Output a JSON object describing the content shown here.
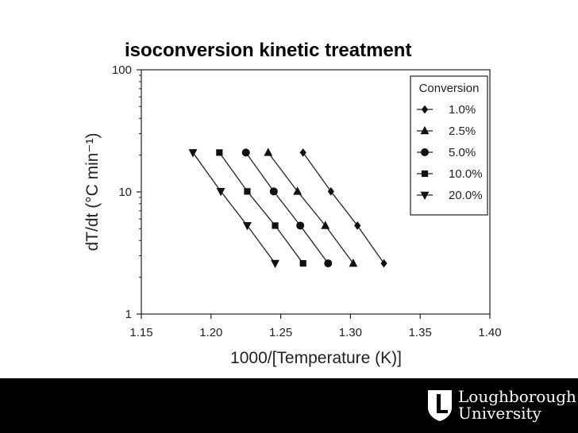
{
  "slide_title": "isoconversion kinetic treatment",
  "logo": {
    "line1": "Loughborough",
    "line2": "University"
  },
  "chart_data": {
    "type": "line",
    "xlabel": "1000/[Temperature (K)]",
    "ylabel": "dT/dt (°C min⁻¹)",
    "xlim": [
      1.15,
      1.4
    ],
    "ylim": [
      1,
      100
    ],
    "yscale": "log",
    "x_ticks": [
      "1.15",
      "1.20",
      "1.25",
      "1.30",
      "1.35",
      "1.40"
    ],
    "y_ticks": [
      "1",
      "10",
      "100"
    ],
    "grid": false,
    "legend_title": "Conversion",
    "legend_position": "top-right",
    "series": [
      {
        "name": "1.0%",
        "marker": "diamond",
        "x": [
          1.266,
          1.286,
          1.305,
          1.324
        ],
        "y": [
          21,
          10.1,
          5.3,
          2.6
        ]
      },
      {
        "name": "2.5%",
        "marker": "triangle-up",
        "x": [
          1.241,
          1.262,
          1.282,
          1.302
        ],
        "y": [
          21,
          10.1,
          5.3,
          2.6
        ]
      },
      {
        "name": "5.0%",
        "marker": "circle",
        "x": [
          1.225,
          1.245,
          1.264,
          1.284
        ],
        "y": [
          21,
          10.1,
          5.3,
          2.6
        ]
      },
      {
        "name": "10.0%",
        "marker": "square",
        "x": [
          1.206,
          1.226,
          1.246,
          1.266
        ],
        "y": [
          21,
          10.1,
          5.3,
          2.6
        ]
      },
      {
        "name": "20.0%",
        "marker": "triangle-down",
        "x": [
          1.187,
          1.207,
          1.226,
          1.246
        ],
        "y": [
          21,
          10.1,
          5.3,
          2.6
        ]
      }
    ]
  }
}
